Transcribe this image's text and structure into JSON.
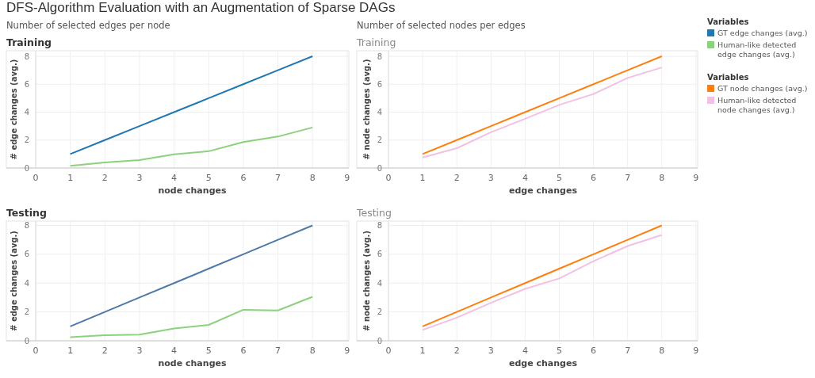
{
  "chart_data": [
    {
      "type": "line",
      "title": "Training",
      "annotations": [
        "DFS-Algorithm Evaluation with an Augmentation of Sparse DAGs",
        "Number of selected edges per node"
      ],
      "xlabel": "node changes",
      "ylabel": "# edge changes (avg.)",
      "x": [
        1,
        2,
        3,
        4,
        5,
        6,
        7,
        8
      ],
      "xlim": [
        0,
        9.05
      ],
      "xticks": [
        0,
        1,
        2,
        3,
        4,
        5,
        6,
        7,
        8,
        9
      ],
      "ylim": [
        0,
        8.4
      ],
      "yticks": [
        0,
        2,
        4,
        6,
        8
      ],
      "grid": true,
      "marker": "none",
      "legend": "right",
      "legend_title": "Variables",
      "series": [
        {
          "name": "GT edge changes (avg.)",
          "color": "#1f77b4",
          "values": [
            1,
            2,
            3,
            4,
            5,
            6,
            7,
            8
          ]
        },
        {
          "name": "Human-like detected edge changes (avg.)",
          "color": "#8cd17d",
          "values": [
            0.15,
            0.4,
            0.57,
            0.98,
            1.2,
            1.86,
            2.25,
            2.9
          ]
        }
      ]
    },
    {
      "type": "line",
      "title": "Training",
      "annotations": [
        "Number of selected nodes per edges"
      ],
      "xlabel": "edge changes",
      "ylabel": "# node changes (avg.)",
      "x": [
        1,
        2,
        3,
        4,
        5,
        6,
        7,
        8
      ],
      "xlim": [
        0,
        9.05
      ],
      "xticks": [
        0,
        1,
        2,
        3,
        4,
        5,
        6,
        7,
        8,
        9
      ],
      "ylim": [
        0,
        8.4
      ],
      "yticks": [
        0,
        2,
        4,
        6,
        8
      ],
      "grid": true,
      "marker": "none",
      "legend": "right",
      "legend_title": "Variables",
      "series": [
        {
          "name": "GT node changes (avg.)",
          "color": "#ff7f0e",
          "values": [
            1,
            2,
            3,
            4,
            5,
            6,
            7,
            8
          ]
        },
        {
          "name": "Human-like detected node changes (avg.)",
          "color": "#f1c0e4",
          "values": [
            0.75,
            1.42,
            2.56,
            3.53,
            4.52,
            5.3,
            6.45,
            7.2
          ]
        }
      ]
    },
    {
      "type": "line",
      "title": "Testing",
      "xlabel": "node changes",
      "ylabel": "# edge changes (avg.)",
      "x": [
        1,
        2,
        3,
        4,
        5,
        6,
        7,
        8
      ],
      "xlim": [
        0,
        9.05
      ],
      "xticks": [
        0,
        1,
        2,
        3,
        4,
        5,
        6,
        7,
        8,
        9
      ],
      "ylim": [
        0,
        8.3
      ],
      "yticks": [
        0,
        2,
        4,
        6,
        8
      ],
      "grid": true,
      "marker": "none",
      "series": [
        {
          "color": "#4e79a7",
          "values": [
            1,
            2,
            3,
            4,
            5,
            6,
            7,
            8
          ]
        },
        {
          "color": "#8cd17d",
          "values": [
            0.25,
            0.38,
            0.43,
            0.85,
            1.1,
            2.15,
            2.1,
            3.05
          ]
        }
      ]
    },
    {
      "type": "line",
      "title": "Testing",
      "xlabel": "edge changes",
      "ylabel": "# node changes (avg.)",
      "x": [
        1,
        2,
        3,
        4,
        5,
        6,
        7,
        8
      ],
      "xlim": [
        0,
        9.05
      ],
      "xticks": [
        0,
        1,
        2,
        3,
        4,
        5,
        6,
        7,
        8,
        9
      ],
      "ylim": [
        0,
        8.3
      ],
      "yticks": [
        0,
        2,
        4,
        6,
        8
      ],
      "grid": true,
      "marker": "none",
      "series": [
        {
          "color": "#ff7f0e",
          "values": [
            1,
            2,
            3,
            4,
            5,
            6,
            7,
            8
          ]
        },
        {
          "color": "#f1c0e4",
          "values": [
            0.75,
            1.6,
            2.63,
            3.6,
            4.32,
            5.52,
            6.57,
            7.34
          ]
        }
      ]
    }
  ]
}
